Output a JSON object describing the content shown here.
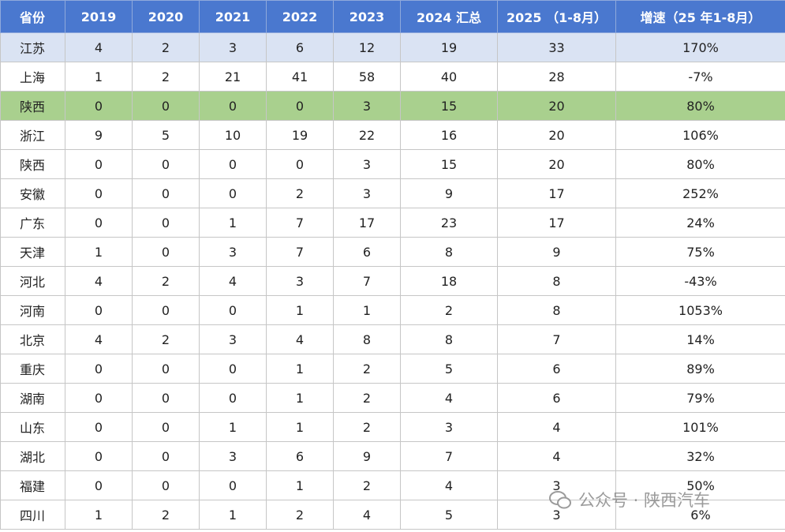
{
  "table": {
    "headers": [
      "省份",
      "2019",
      "2020",
      "2021",
      "2022",
      "2023",
      "2024 汇总",
      "2025 （1-8月）",
      "增速（25 年1-8月）"
    ],
    "rows": [
      [
        "江苏",
        "4",
        "2",
        "3",
        "6",
        "12",
        "19",
        "33",
        "170%"
      ],
      [
        "上海",
        "1",
        "2",
        "21",
        "41",
        "58",
        "40",
        "28",
        "-7%"
      ],
      [
        "陕西",
        "0",
        "0",
        "0",
        "0",
        "3",
        "15",
        "20",
        "80%"
      ],
      [
        "浙江",
        "9",
        "5",
        "10",
        "19",
        "22",
        "16",
        "20",
        "106%"
      ],
      [
        "陕西",
        "0",
        "0",
        "0",
        "0",
        "3",
        "15",
        "20",
        "80%"
      ],
      [
        "安徽",
        "0",
        "0",
        "0",
        "2",
        "3",
        "9",
        "17",
        "252%"
      ],
      [
        "广东",
        "0",
        "0",
        "1",
        "7",
        "17",
        "23",
        "17",
        "24%"
      ],
      [
        "天津",
        "1",
        "0",
        "3",
        "7",
        "6",
        "8",
        "9",
        "75%"
      ],
      [
        "河北",
        "4",
        "2",
        "4",
        "3",
        "7",
        "18",
        "8",
        "-43%"
      ],
      [
        "河南",
        "0",
        "0",
        "0",
        "1",
        "1",
        "2",
        "8",
        "1053%"
      ],
      [
        "北京",
        "4",
        "2",
        "3",
        "4",
        "8",
        "8",
        "7",
        "14%"
      ],
      [
        "重庆",
        "0",
        "0",
        "0",
        "1",
        "2",
        "5",
        "6",
        "89%"
      ],
      [
        "湖南",
        "0",
        "0",
        "0",
        "1",
        "2",
        "4",
        "6",
        "79%"
      ],
      [
        "山东",
        "0",
        "0",
        "1",
        "1",
        "2",
        "3",
        "4",
        "101%"
      ],
      [
        "湖北",
        "0",
        "0",
        "3",
        "6",
        "9",
        "7",
        "4",
        "32%"
      ],
      [
        "福建",
        "0",
        "0",
        "0",
        "1",
        "2",
        "4",
        "3",
        "50%"
      ],
      [
        "四川",
        "1",
        "2",
        "1",
        "2",
        "4",
        "5",
        "3",
        "6%"
      ]
    ]
  },
  "watermark": "公众号 · 陕西汽车"
}
